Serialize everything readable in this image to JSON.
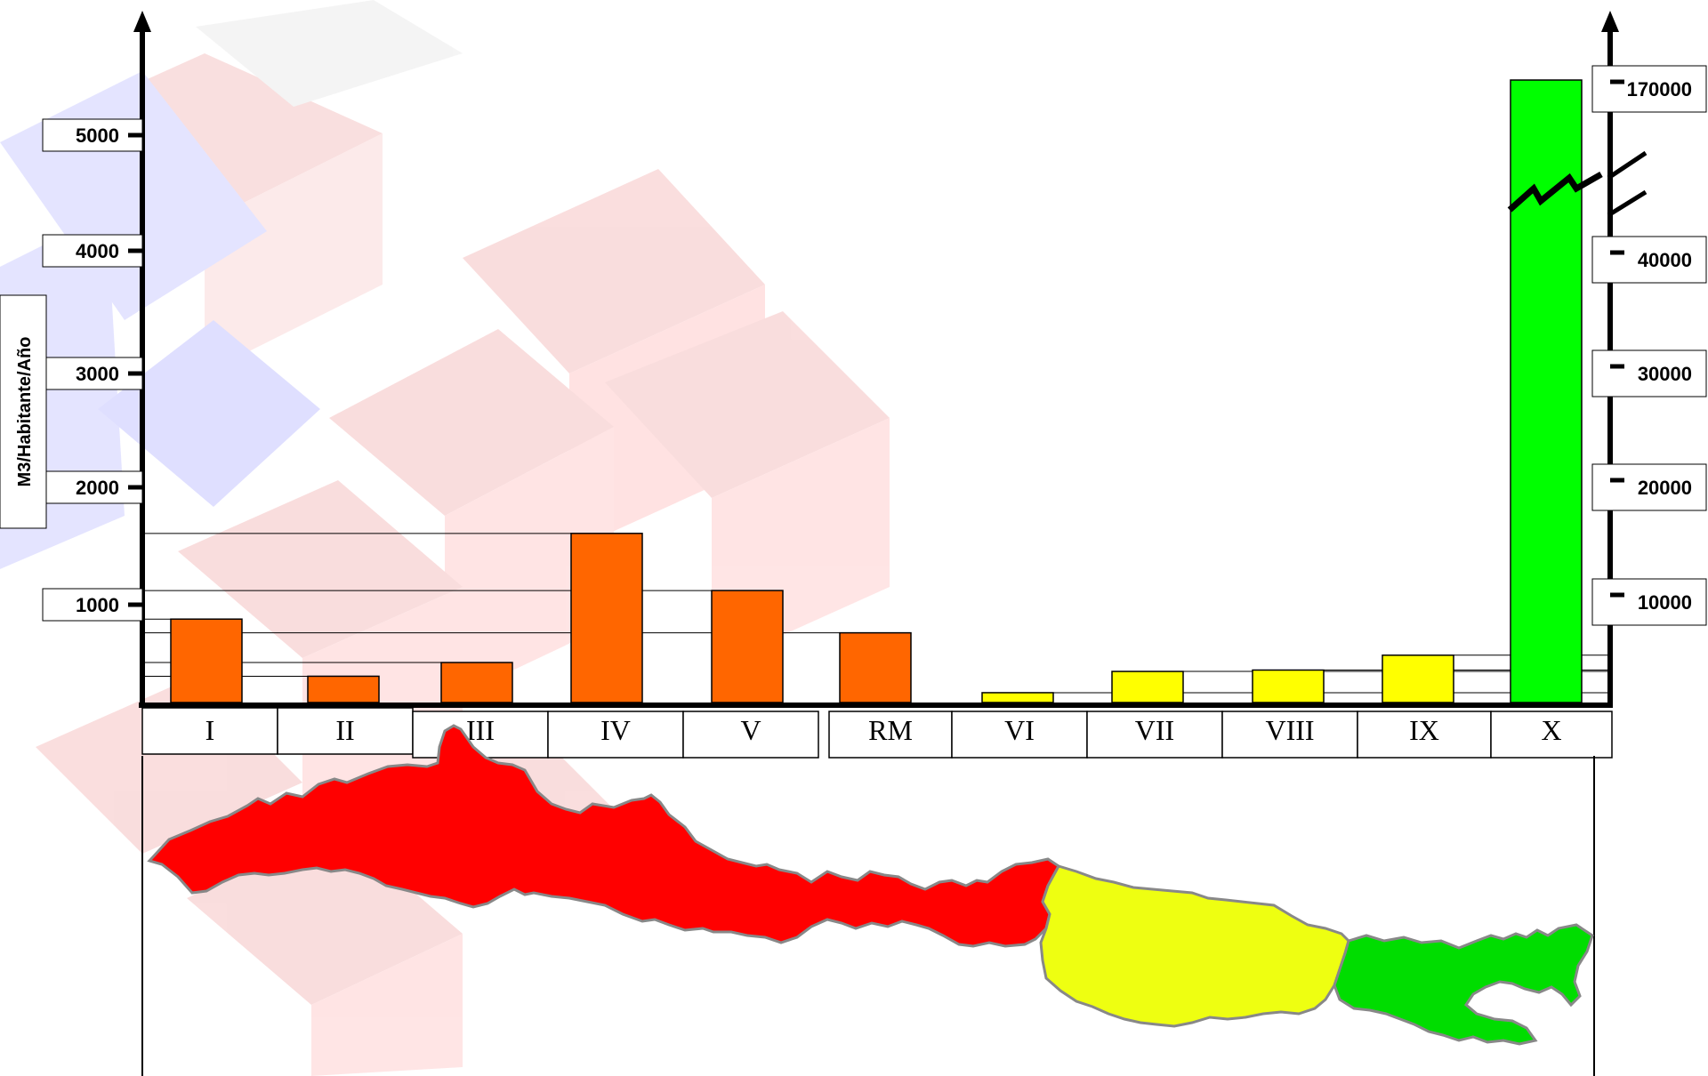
{
  "chart_data": {
    "type": "bar",
    "ylabel": "M3/Habitante/Año",
    "categories": [
      "I",
      "II",
      "III",
      "IV",
      "V",
      "RM",
      "VI",
      "VII",
      "VIII",
      "IX",
      "X"
    ],
    "series": [
      {
        "values": [
          730,
          230,
          350,
          1480,
          980,
          610,
          860,
          2720,
          2840,
          4140,
          170000
        ]
      }
    ],
    "bar_colors": [
      "#ff6600",
      "#ff6600",
      "#ff6600",
      "#ff6600",
      "#ff6600",
      "#ff6600",
      "#ffff00",
      "#ffff00",
      "#ffff00",
      "#ffff00",
      "#00ff00"
    ],
    "left_axis": {
      "ticks": [
        "1000",
        "2000",
        "3000",
        "4000",
        "5000"
      ],
      "ylim": [
        0,
        5000
      ]
    },
    "right_axis": {
      "ticks": [
        "10000",
        "20000",
        "30000",
        "40000",
        "170000"
      ],
      "axis_break": true
    },
    "grid": false
  },
  "map": {
    "zone_colors": {
      "arid": "#ff0000",
      "temperate": "#eeff11",
      "humid": "#00dd00",
      "outline": "#888888"
    }
  }
}
